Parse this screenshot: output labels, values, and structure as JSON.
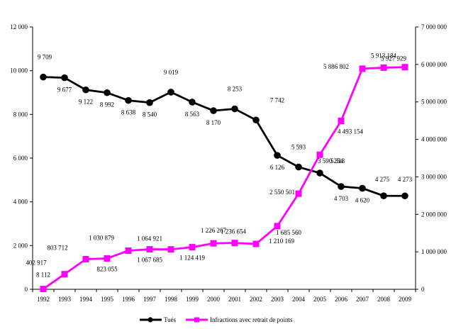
{
  "chart_data": {
    "type": "line",
    "title": "",
    "xlabel": "",
    "ylabel": "",
    "categories": [
      "1992",
      "1993",
      "1994",
      "1995",
      "1996",
      "1997",
      "1998",
      "1999",
      "2000",
      "2001",
      "2002",
      "2003",
      "2004",
      "2005",
      "2006",
      "2007",
      "2008",
      "2009"
    ],
    "y_left": {
      "min": 0,
      "max": 12000,
      "ticks": [
        0,
        2000,
        4000,
        6000,
        8000,
        10000,
        12000
      ],
      "tick_labels": [
        "0",
        "2 000",
        "4 000",
        "6 000",
        "8 000",
        "10 000",
        "12 000"
      ]
    },
    "y_right": {
      "min": 0,
      "max": 7000000,
      "ticks": [
        0,
        1000000,
        2000000,
        3000000,
        4000000,
        5000000,
        6000000,
        7000000
      ],
      "tick_labels": [
        "0",
        "1 000 000",
        "2 000 000",
        "3 000 000",
        "4 000 000",
        "5 000 000",
        "6 000 000",
        "7 000 000"
      ]
    },
    "grid": false,
    "legend_position": "bottom",
    "series": [
      {
        "name": "Tués",
        "axis": "left",
        "color": "#000000",
        "marker": "circle",
        "values": [
          9709,
          9677,
          9122,
          8992,
          8638,
          8540,
          9019,
          8563,
          8170,
          8253,
          7742,
          6126,
          5593,
          5318,
          4703,
          4620,
          4275,
          4273
        ],
        "labels": [
          "9 709",
          "9 677",
          "9 122",
          "8 992",
          "8 638",
          "8 540",
          "9 019",
          "8 563",
          "8 170",
          "8 253",
          "7 742",
          "6 126",
          "5 593",
          "5 318",
          "4 703",
          "4 620",
          "4 275",
          "4 273"
        ]
      },
      {
        "name": "Infractions avec retrait de points",
        "axis": "right",
        "color": "#ff00ff",
        "marker": "square",
        "values": [
          8112,
          402917,
          803712,
          823055,
          1030879,
          1067685,
          1064921,
          1124419,
          1226267,
          1236654,
          1210169,
          1685560,
          2550501,
          3590254,
          4493154,
          5886802,
          5913184,
          5927929
        ],
        "labels": [
          "8 112",
          "402 917",
          "803 712",
          "823 055",
          "1 030 879",
          "1 067 685",
          "1 064 921",
          "1 124 419",
          "1 226 267",
          "1 236 654",
          "1 210 169",
          "1 685 560",
          "2 550 501",
          "3 590 254",
          "4 493 154",
          "5 886 802",
          "5 913 184",
          "5 927 929"
        ]
      }
    ]
  }
}
